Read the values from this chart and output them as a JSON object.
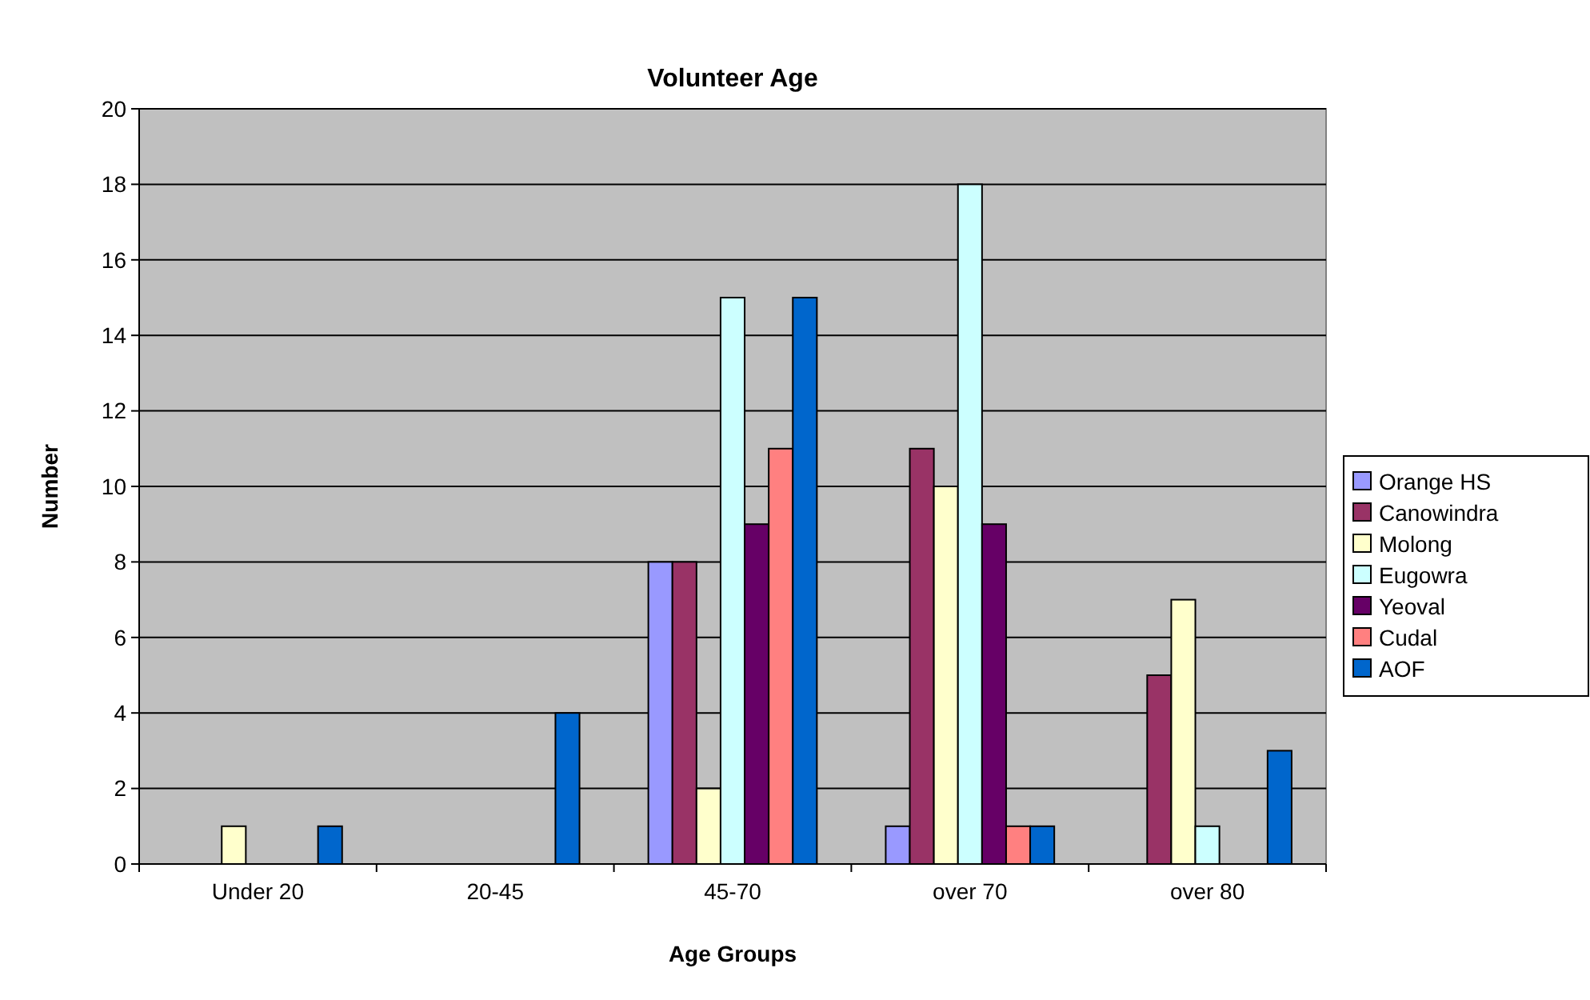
{
  "chart_data": {
    "type": "bar",
    "title": "Volunteer Age",
    "xlabel": "Age Groups",
    "ylabel": "Number",
    "categories": [
      "Under 20",
      "20-45",
      "45-70",
      "over 70",
      "over 80"
    ],
    "series": [
      {
        "name": "Orange HS",
        "color": "#9999ff",
        "values": [
          0,
          0,
          8,
          1,
          0
        ]
      },
      {
        "name": "Canowindra",
        "color": "#993366",
        "values": [
          0,
          0,
          8,
          11,
          5
        ]
      },
      {
        "name": "Molong",
        "color": "#ffffcc",
        "values": [
          1,
          0,
          2,
          10,
          7
        ]
      },
      {
        "name": "Eugowra",
        "color": "#ccffff",
        "values": [
          0,
          0,
          15,
          18,
          1
        ]
      },
      {
        "name": "Yeoval",
        "color": "#660066",
        "values": [
          0,
          0,
          9,
          9,
          0
        ]
      },
      {
        "name": "Cudal",
        "color": "#ff8080",
        "values": [
          0,
          0,
          11,
          1,
          0
        ]
      },
      {
        "name": "AOF",
        "color": "#0066cc",
        "values": [
          1,
          4,
          15,
          1,
          3
        ]
      }
    ],
    "ylim": [
      0,
      20
    ],
    "yticks": [
      0,
      2,
      4,
      6,
      8,
      10,
      12,
      14,
      16,
      18,
      20
    ],
    "grid": "y",
    "legend": "right"
  }
}
